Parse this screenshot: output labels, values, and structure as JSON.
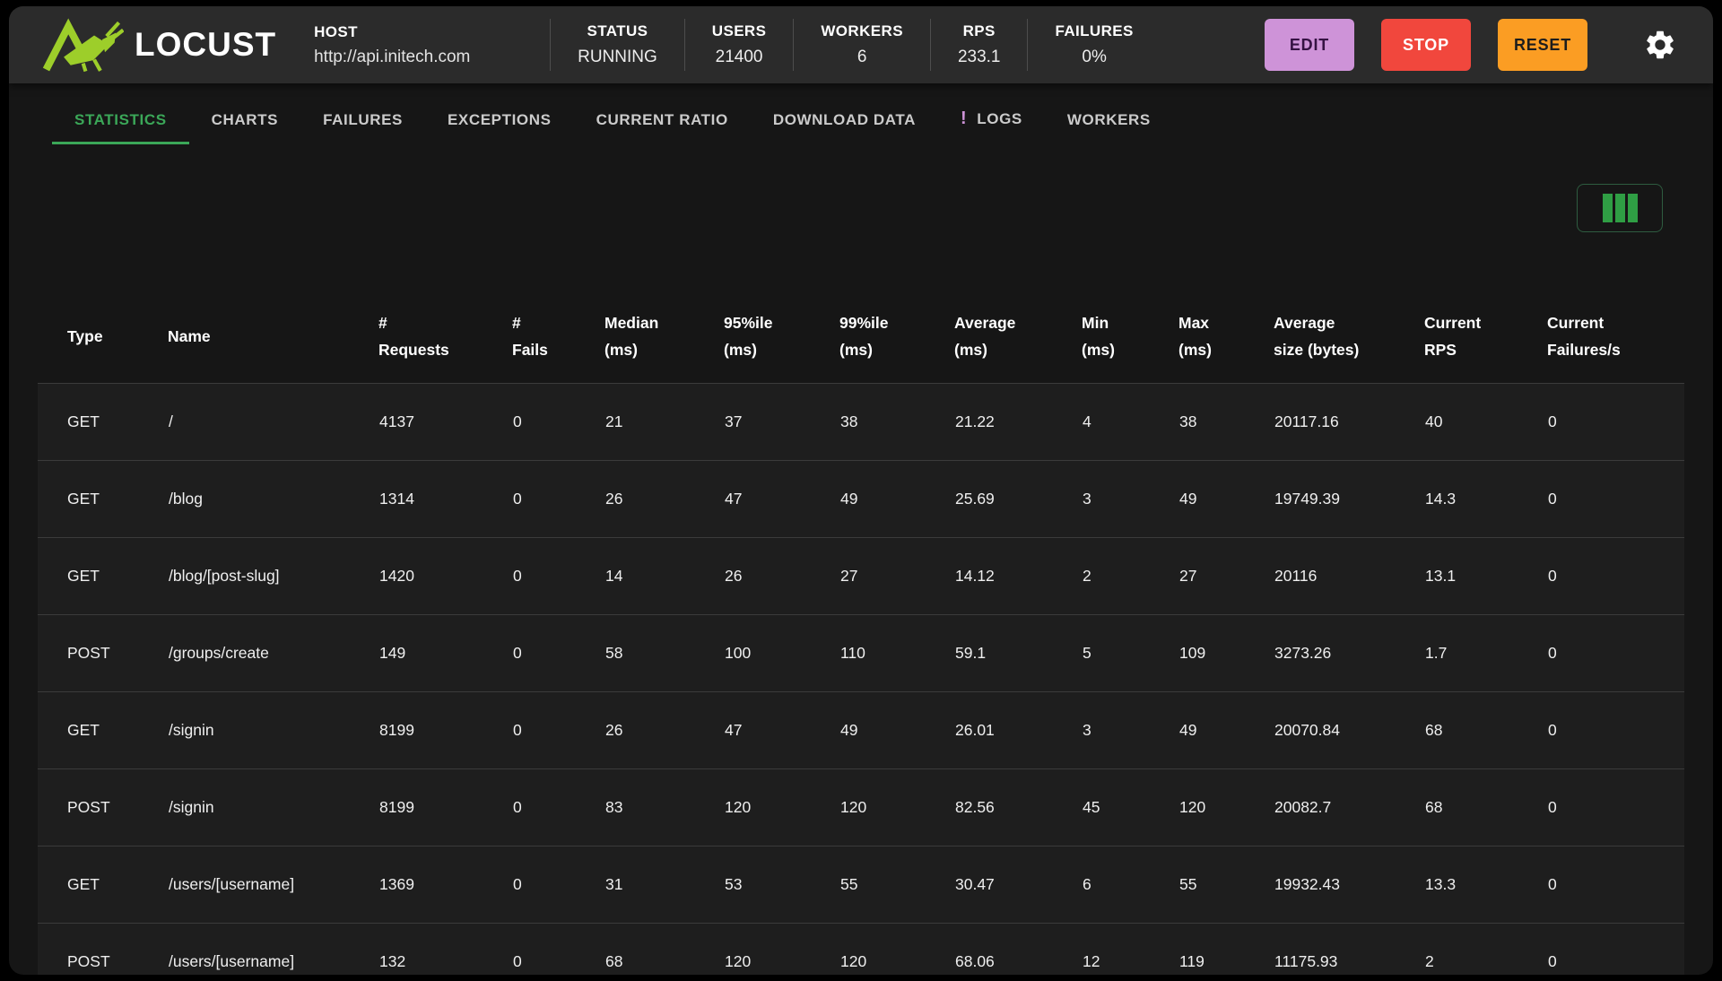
{
  "topbar": {
    "brand": "LOCUST",
    "host": {
      "label": "HOST",
      "value": "http://api.initech.com"
    },
    "stats": [
      {
        "id": "status",
        "label": "STATUS",
        "value": "RUNNING"
      },
      {
        "id": "users",
        "label": "USERS",
        "value": "21400"
      },
      {
        "id": "workers",
        "label": "WORKERS",
        "value": "6"
      },
      {
        "id": "rps",
        "label": "RPS",
        "value": "233.1"
      },
      {
        "id": "failures",
        "label": "FAILURES",
        "value": "0%"
      }
    ],
    "buttons": {
      "edit": "EDIT",
      "stop": "STOP",
      "reset": "RESET"
    }
  },
  "tabs": [
    {
      "label": "STATISTICS",
      "active": true
    },
    {
      "label": "CHARTS"
    },
    {
      "label": "FAILURES"
    },
    {
      "label": "EXCEPTIONS"
    },
    {
      "label": "CURRENT RATIO"
    },
    {
      "label": "DOWNLOAD DATA"
    },
    {
      "label": "LOGS",
      "badge": "!"
    },
    {
      "label": "WORKERS"
    }
  ],
  "table": {
    "columns": [
      {
        "label": "Type"
      },
      {
        "label": "Name"
      },
      {
        "label": "#\nRequests"
      },
      {
        "label": "#\nFails"
      },
      {
        "label": "Median\n(ms)"
      },
      {
        "label": "95%ile\n(ms)"
      },
      {
        "label": "99%ile\n(ms)"
      },
      {
        "label": "Average\n(ms)"
      },
      {
        "label": "Min\n(ms)"
      },
      {
        "label": "Max\n(ms)"
      },
      {
        "label": "Average\nsize (bytes)"
      },
      {
        "label": "Current\nRPS"
      },
      {
        "label": "Current\nFailures/s"
      }
    ],
    "rows": [
      [
        "GET",
        "/",
        "4137",
        "0",
        "21",
        "37",
        "38",
        "21.22",
        "4",
        "38",
        "20117.16",
        "40",
        "0"
      ],
      [
        "GET",
        "/blog",
        "1314",
        "0",
        "26",
        "47",
        "49",
        "25.69",
        "3",
        "49",
        "19749.39",
        "14.3",
        "0"
      ],
      [
        "GET",
        "/blog/[post-slug]",
        "1420",
        "0",
        "14",
        "26",
        "27",
        "14.12",
        "2",
        "27",
        "20116",
        "13.1",
        "0"
      ],
      [
        "POST",
        "/groups/create",
        "149",
        "0",
        "58",
        "100",
        "110",
        "59.1",
        "5",
        "109",
        "3273.26",
        "1.7",
        "0"
      ],
      [
        "GET",
        "/signin",
        "8199",
        "0",
        "26",
        "47",
        "49",
        "26.01",
        "3",
        "49",
        "20070.84",
        "68",
        "0"
      ],
      [
        "POST",
        "/signin",
        "8199",
        "0",
        "83",
        "120",
        "120",
        "82.56",
        "45",
        "120",
        "20082.7",
        "68",
        "0"
      ],
      [
        "GET",
        "/users/[username]",
        "1369",
        "0",
        "31",
        "53",
        "55",
        "30.47",
        "6",
        "55",
        "19932.43",
        "13.3",
        "0"
      ],
      [
        "POST",
        "/users/[username]",
        "132",
        "0",
        "68",
        "120",
        "120",
        "68.06",
        "12",
        "119",
        "11175.93",
        "2",
        "0"
      ]
    ]
  },
  "colors": {
    "accent_green": "#3ba758",
    "logo_green": "#9dce2a",
    "alert_purple": "#ce93d8",
    "icon_green": "#2f9e44",
    "edit_bg": "#ce93d8",
    "edit_text": "#351243",
    "stop_bg": "#f1473d",
    "stop_text": "#ffffff",
    "reset_bg": "#fb9d23",
    "reset_text": "#1d1d1d"
  }
}
